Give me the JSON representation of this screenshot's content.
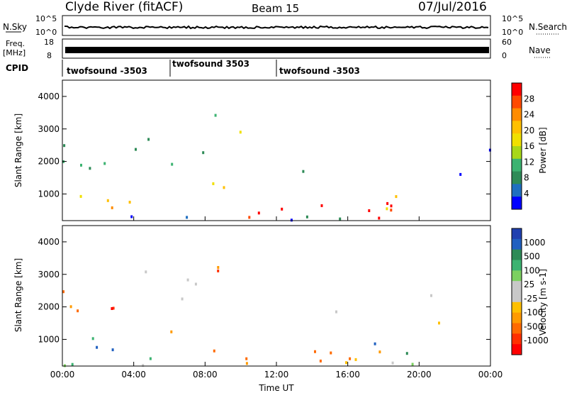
{
  "header": {
    "station": "Clyde River (fitACF)",
    "beam": "Beam 15",
    "date": "07/Jul/2016"
  },
  "top_panels": {
    "nsky_label": "N.Sky",
    "freq_label_1": "Freq.",
    "freq_label_2": "[MHz]",
    "cpid_label": "CPID",
    "nsearch_label": "N.Search",
    "nave_label": "Nave",
    "noise_left_ticks": [
      "10^5",
      "10^0"
    ],
    "noise_right_ticks": [
      "10^5",
      "10^0"
    ],
    "freq_ticks": [
      "18",
      "8"
    ],
    "nave_ticks": [
      "60",
      "0"
    ],
    "cpid_segments": [
      "twofsound -3503",
      "twofsound 3503",
      "twofsound -3503"
    ]
  },
  "chart_data": [
    {
      "type": "heatmap",
      "title": "",
      "quantity": "Power",
      "ylabel": "Slant Range [km]",
      "xlabel": "",
      "x_ticks": [
        "00:00",
        "04:00",
        "08:00",
        "12:00",
        "16:00",
        "20:00",
        "00:00"
      ],
      "y_ticks": [
        1000,
        2000,
        3000,
        4000
      ],
      "ylim": [
        180,
        4500
      ],
      "colorbar_label": "Power [dB]",
      "colorbar_ticks": [
        "28",
        "24",
        "20",
        "16",
        "12",
        "8",
        "4"
      ],
      "colorbar_colors": [
        "#ff0000",
        "#ff4a00",
        "#ff8c00",
        "#ffc000",
        "#f0e000",
        "#a8d818",
        "#3cb371",
        "#2e8b57",
        "#1f6fc0",
        "#0000ff"
      ]
    },
    {
      "type": "heatmap",
      "title": "",
      "quantity": "Velocity",
      "ylabel": "Slant Range [km]",
      "xlabel": "Time UT",
      "x_ticks": [
        "00:00",
        "04:00",
        "08:00",
        "12:00",
        "16:00",
        "20:00",
        "00:00"
      ],
      "y_ticks": [
        1000,
        2000,
        3000,
        4000
      ],
      "ylim": [
        180,
        4500
      ],
      "colorbar_label": "Velocity [m s-1]",
      "colorbar_ticks": [
        "1000",
        "500",
        "100",
        "25",
        "-25",
        "-100",
        "-500",
        "-1000"
      ],
      "colorbar_colors": [
        "#2040b0",
        "#2060c0",
        "#2e8b57",
        "#3cb371",
        "#7cd060",
        "#c8c8c8",
        "#c8c8c8",
        "#ffc000",
        "#ff9a00",
        "#ff6a00",
        "#ff3000",
        "#ff0000"
      ]
    }
  ]
}
